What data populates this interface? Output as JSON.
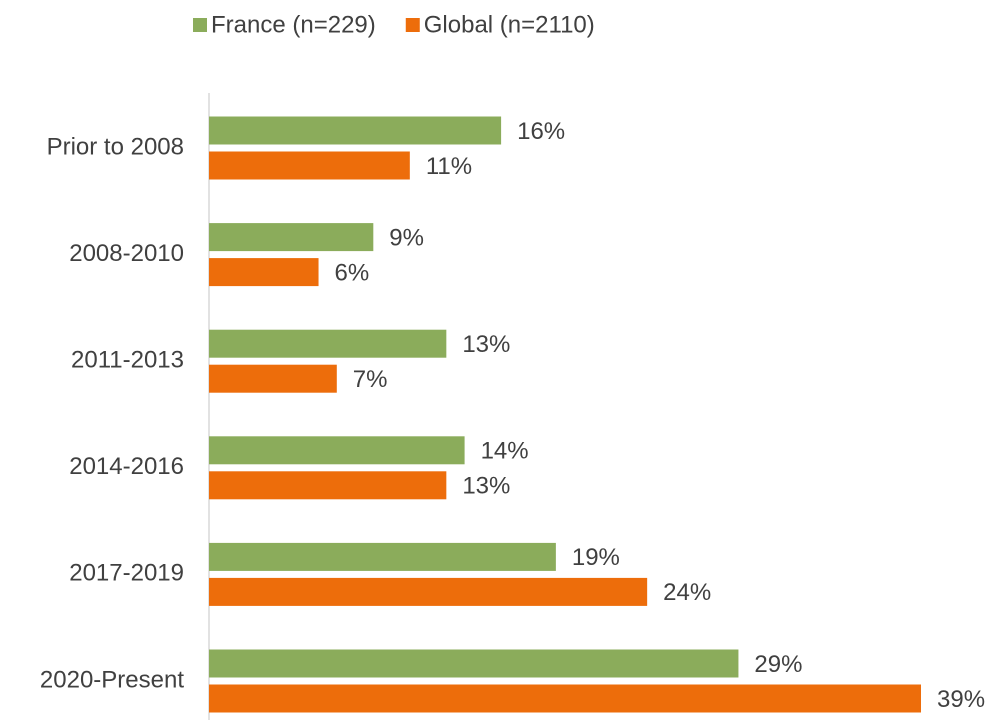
{
  "chart_data": {
    "type": "bar",
    "orientation": "horizontal",
    "legend": "top",
    "categories": [
      "Prior to 2008",
      "2008-2010",
      "2011-2013",
      "2014-2016",
      "2017-2019",
      "2020-Present"
    ],
    "series": [
      {
        "name": "France (n=229)",
        "color": "#8bac5b",
        "values": [
          16,
          9,
          13,
          14,
          19,
          29
        ],
        "value_labels": [
          "16%",
          "9%",
          "13%",
          "14%",
          "19%",
          "29%"
        ]
      },
      {
        "name": "Global (n=2110)",
        "color": "#ed6d0b",
        "values": [
          11,
          6,
          7,
          13,
          24,
          39
        ],
        "value_labels": [
          "11%",
          "6%",
          "7%",
          "13%",
          "24%",
          "39%"
        ]
      }
    ]
  }
}
